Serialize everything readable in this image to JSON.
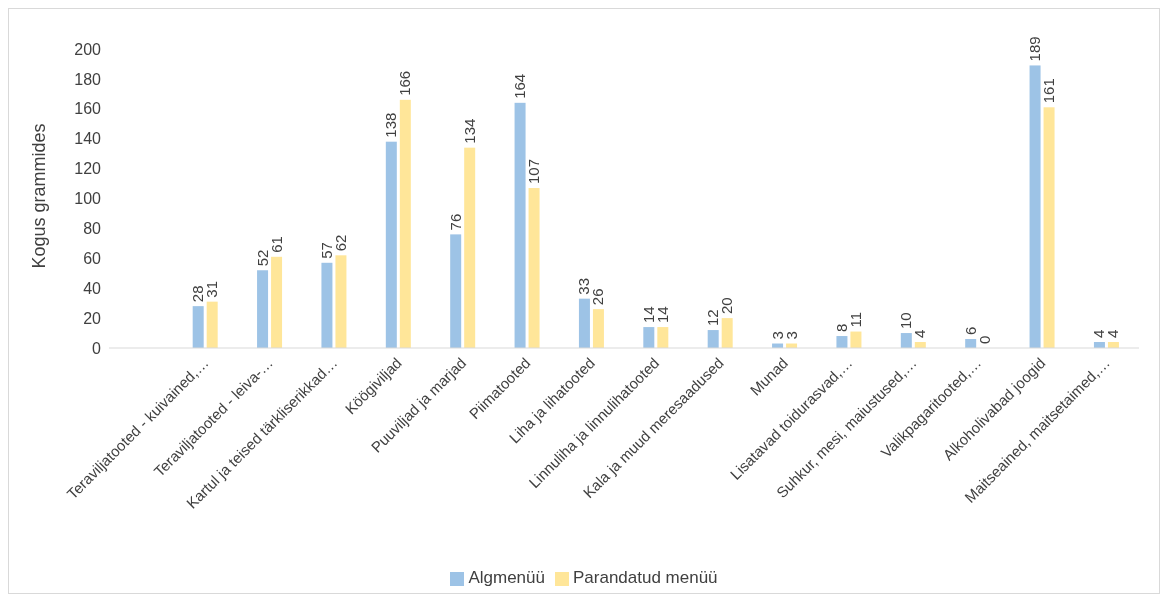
{
  "chart_data": {
    "type": "bar",
    "ylabel": "Kogus grammides",
    "categories": [
      null,
      "Teraviljatooted - kuivained,…",
      "Teraviljatooted - leiva-…",
      "Kartul ja teised tärkliserikkad…",
      "Köögiviljad",
      "Puuviljad ja marjad",
      "Piimatooted",
      "Liha ja lihatooted",
      "Linnuliha ja linnulihatooted",
      "Kala ja muud meresaadused",
      "Munad",
      "Lisatavad toidurasvad,…",
      "Suhkur, mesi, maiustused,…",
      "Valikpagaritooted,…",
      "Alkoholivabad joogid",
      "Maitseained, maitsetaimed,…"
    ],
    "series": [
      {
        "name": "Algmenüü",
        "color": "#9dc3e6",
        "values": [
          null,
          28,
          52,
          57,
          138,
          76,
          164,
          33,
          14,
          12,
          3,
          8,
          10,
          6,
          189,
          4
        ]
      },
      {
        "name": "Parandatud menüü",
        "color": "#ffe699",
        "values": [
          null,
          31,
          61,
          62,
          166,
          134,
          107,
          26,
          14,
          20,
          3,
          11,
          4,
          0,
          161,
          4
        ]
      }
    ],
    "ylim": [
      0,
      200
    ],
    "yticks": [
      0,
      20,
      40,
      60,
      80,
      100,
      120,
      140,
      160,
      180,
      200
    ],
    "data_labels": true,
    "legend": "bottom",
    "grid": false
  }
}
